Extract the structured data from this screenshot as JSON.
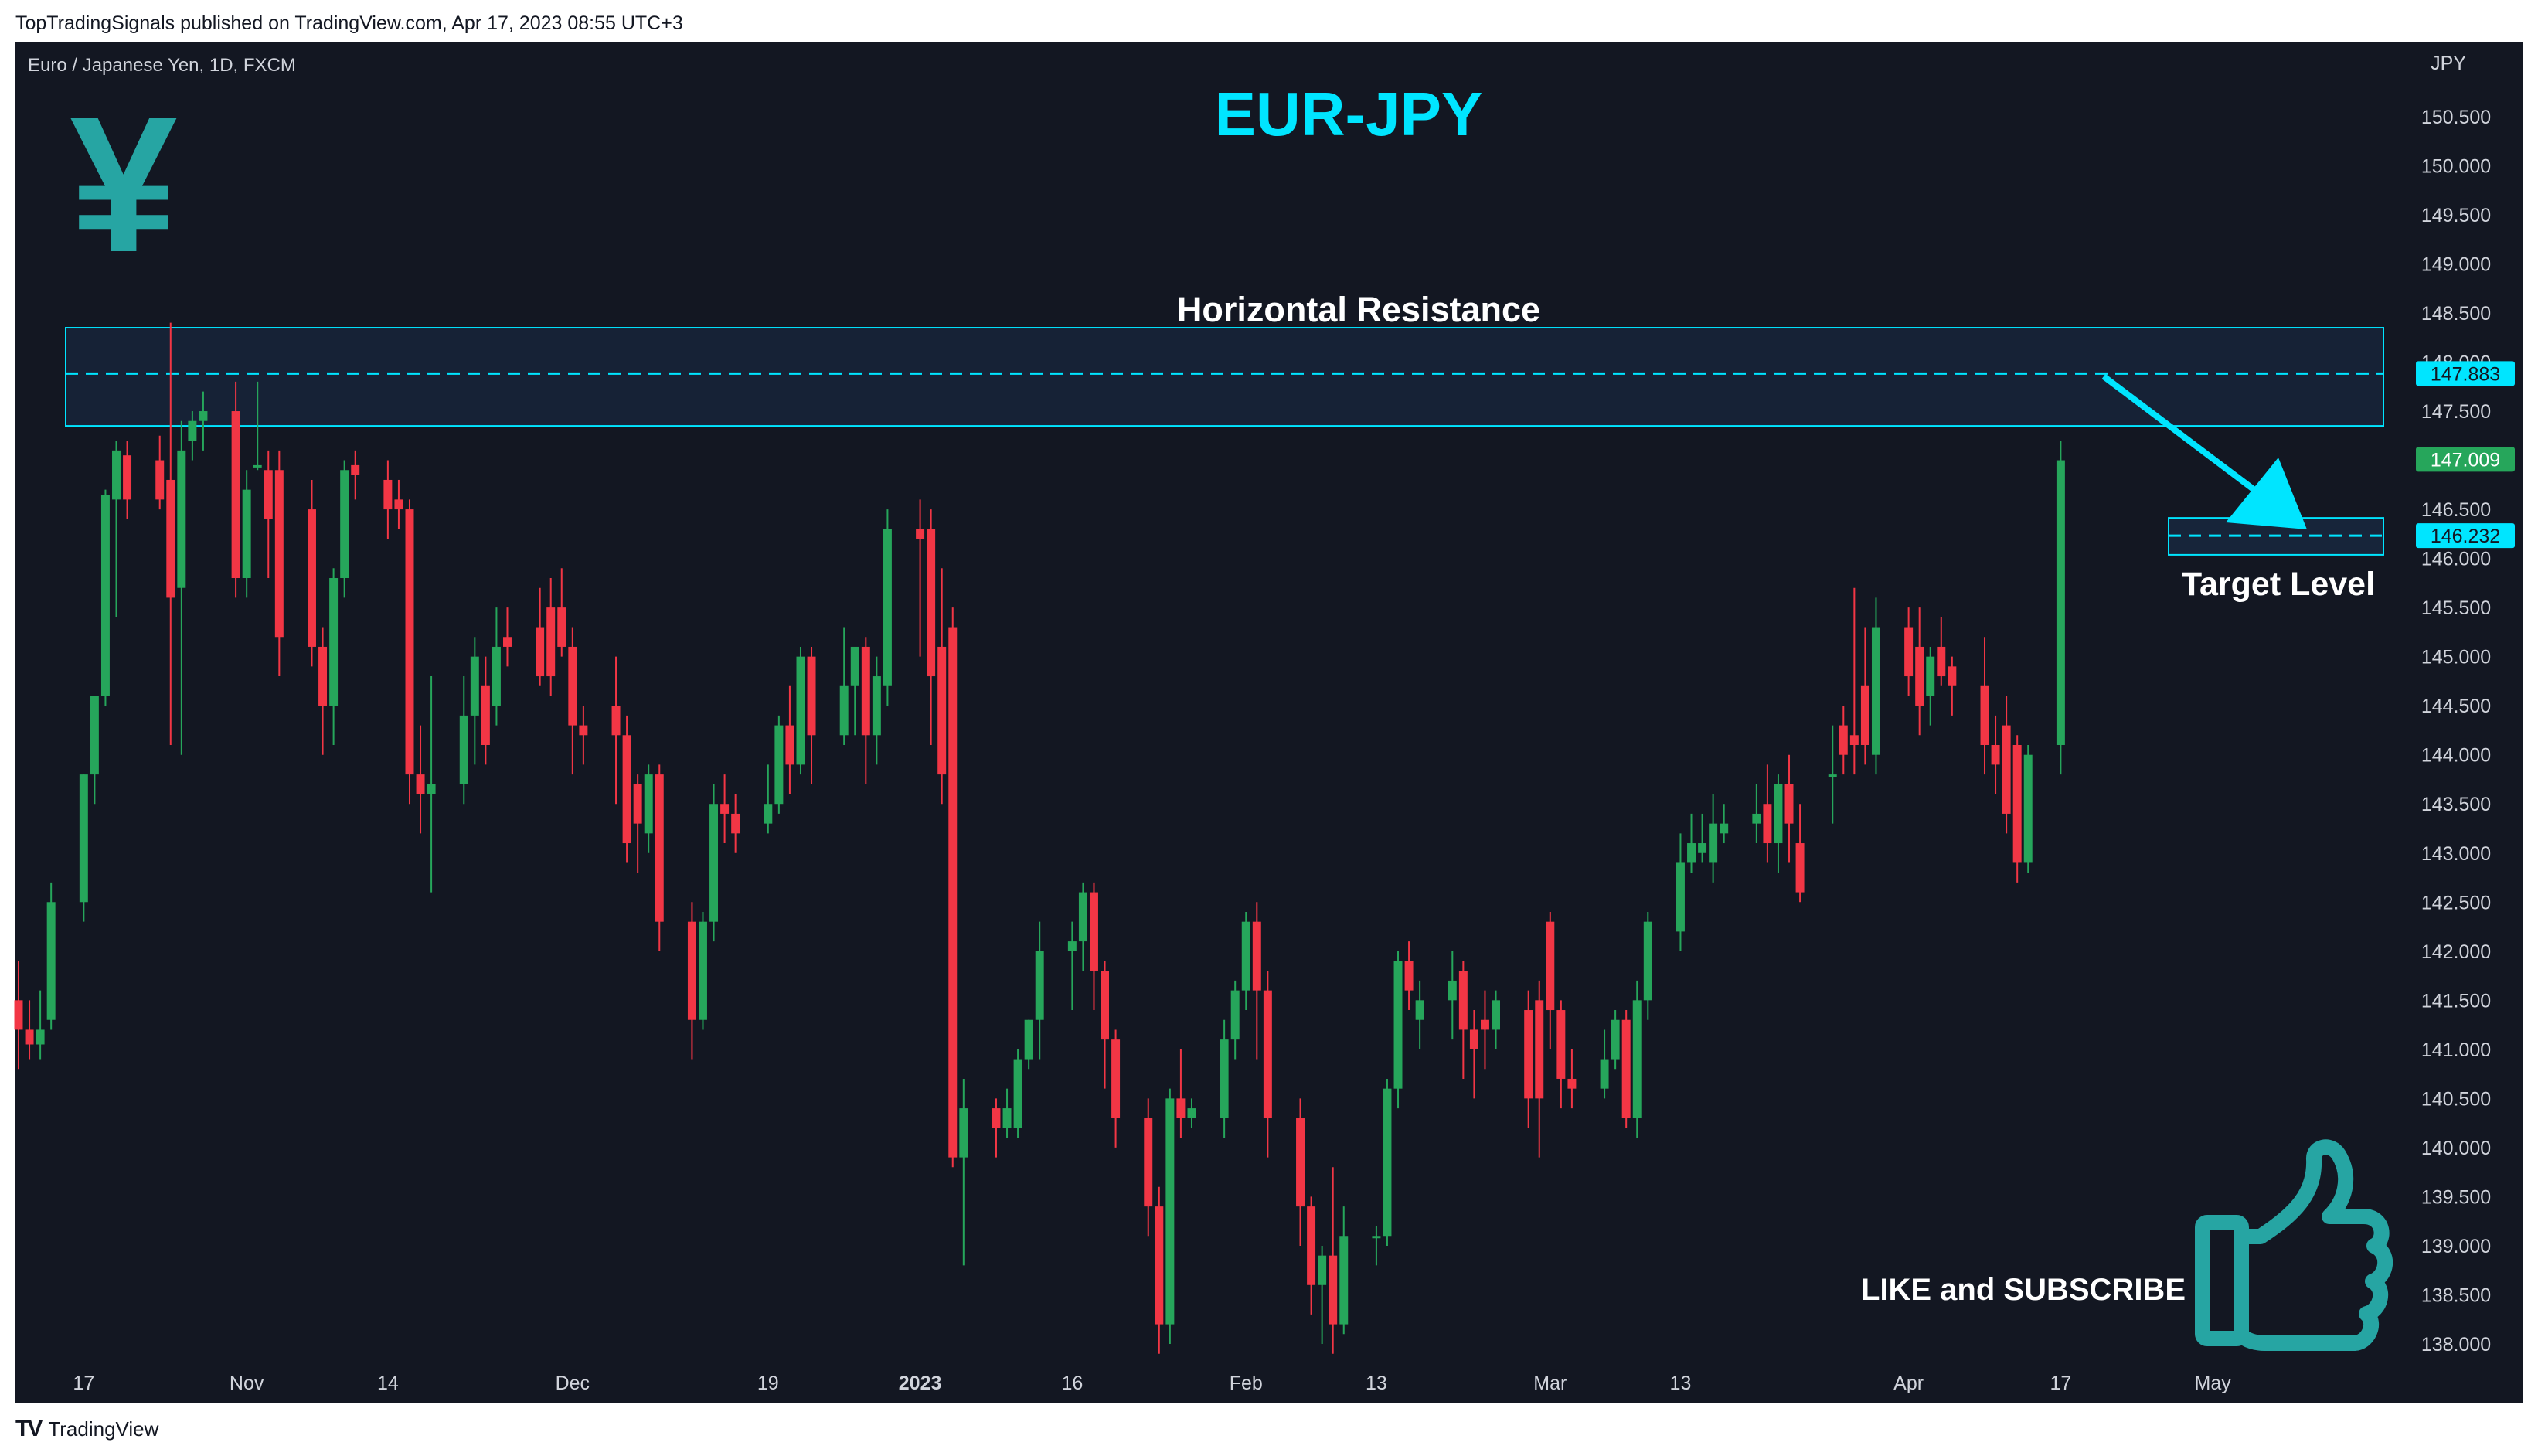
{
  "publish_info": "TopTradingSignals published on TradingView.com, Apr 17, 2023 08:55 UTC+3",
  "footer_brand": "TradingView",
  "footer_logo": "TV",
  "symbol_label": "Euro / Japanese Yen, 1D, FXCM",
  "currency": "JPY",
  "headline": "EUR-JPY",
  "logo_glyph": "¥",
  "icons": {
    "currency_logo": "yen-icon",
    "like": "thumbs-up-icon",
    "arrow": "arrow-icon"
  },
  "colors": {
    "background": "#131722",
    "up": "#26a65b",
    "down": "#f23645",
    "accent": "#00e5ff",
    "text": "#ffffff",
    "axis_text": "#d1d4dc"
  },
  "annotations": {
    "resistance_label": "Horizontal Resistance",
    "target_label": "Target Level",
    "subscribe_label": "LIKE and SUBSCRIBE"
  },
  "chart_data": {
    "type": "candlestick",
    "symbol": "EUR/JPY",
    "interval": "1D",
    "ylim": [
      137.9,
      150.85
    ],
    "y_ticks": [
      138.0,
      138.5,
      139.0,
      139.5,
      140.0,
      140.5,
      141.0,
      141.5,
      142.0,
      142.5,
      143.0,
      143.5,
      144.0,
      144.5,
      145.0,
      145.5,
      146.0,
      146.5,
      147.0,
      147.5,
      148.0,
      148.5,
      149.0,
      149.5,
      150.0,
      150.5
    ],
    "y_tick_labels": [
      "138.000",
      "138.500",
      "139.000",
      "139.500",
      "140.000",
      "140.500",
      "141.000",
      "141.500",
      "142.000",
      "142.500",
      "143.000",
      "143.500",
      "144.000",
      "144.500",
      "145.000",
      "145.500",
      "146.000",
      "146.500",
      "147.000",
      "147.500",
      "148.000",
      "148.500",
      "149.000",
      "149.500",
      "150.000",
      "150.500"
    ],
    "x_range": [
      "2022-10-11",
      "2023-05-16"
    ],
    "x_ticks": [
      {
        "date": "2022-10-17",
        "label": "17"
      },
      {
        "date": "2022-11-01",
        "label": "Nov"
      },
      {
        "date": "2022-11-14",
        "label": "14"
      },
      {
        "date": "2022-12-01",
        "label": "Dec"
      },
      {
        "date": "2022-12-19",
        "label": "19"
      },
      {
        "date": "2023-01-02",
        "label": "2023"
      },
      {
        "date": "2023-01-16",
        "label": "16"
      },
      {
        "date": "2023-02-01",
        "label": "Feb"
      },
      {
        "date": "2023-02-13",
        "label": "13"
      },
      {
        "date": "2023-03-01",
        "label": "Mar"
      },
      {
        "date": "2023-03-13",
        "label": "13"
      },
      {
        "date": "2023-04-03",
        "label": "Apr"
      },
      {
        "date": "2023-04-17",
        "label": "17"
      },
      {
        "date": "2023-05-01",
        "label": "May"
      }
    ],
    "candles": [
      {
        "d": "2022-10-11",
        "o": 141.5,
        "h": 141.9,
        "c": 141.2,
        "l": 140.8
      },
      {
        "d": "2022-10-12",
        "o": 141.2,
        "h": 141.5,
        "c": 141.05,
        "l": 140.9
      },
      {
        "d": "2022-10-13",
        "o": 141.05,
        "h": 141.6,
        "c": 141.2,
        "l": 140.9
      },
      {
        "d": "2022-10-14",
        "o": 141.3,
        "h": 142.7,
        "c": 142.5,
        "l": 141.2
      },
      {
        "d": "2022-10-17",
        "o": 142.5,
        "h": 143.8,
        "c": 143.8,
        "l": 142.3
      },
      {
        "d": "2022-10-18",
        "o": 143.8,
        "h": 144.6,
        "c": 144.6,
        "l": 143.5
      },
      {
        "d": "2022-10-19",
        "o": 144.6,
        "h": 146.7,
        "c": 146.65,
        "l": 144.5
      },
      {
        "d": "2022-10-20",
        "o": 146.6,
        "h": 147.2,
        "c": 147.1,
        "l": 145.4
      },
      {
        "d": "2022-10-21",
        "o": 147.05,
        "h": 147.2,
        "c": 146.6,
        "l": 146.4
      },
      {
        "d": "2022-10-24",
        "o": 147.0,
        "h": 147.25,
        "c": 146.6,
        "l": 146.5
      },
      {
        "d": "2022-10-25",
        "o": 146.8,
        "h": 148.4,
        "c": 145.6,
        "l": 144.1
      },
      {
        "d": "2022-10-26",
        "o": 145.7,
        "h": 147.4,
        "c": 147.1,
        "l": 144.0
      },
      {
        "d": "2022-10-27",
        "o": 147.2,
        "h": 147.5,
        "c": 147.4,
        "l": 147.0
      },
      {
        "d": "2022-10-28",
        "o": 147.4,
        "h": 147.7,
        "c": 147.5,
        "l": 147.1
      },
      {
        "d": "2022-10-31",
        "o": 147.5,
        "h": 147.8,
        "c": 145.8,
        "l": 145.6
      },
      {
        "d": "2022-11-01",
        "o": 145.8,
        "h": 146.9,
        "c": 146.7,
        "l": 145.6
      },
      {
        "d": "2022-11-02",
        "o": 146.95,
        "h": 147.8,
        "c": 146.95,
        "l": 146.9
      },
      {
        "d": "2022-11-03",
        "o": 146.9,
        "h": 147.1,
        "c": 146.4,
        "l": 145.8
      },
      {
        "d": "2022-11-04",
        "o": 146.9,
        "h": 147.1,
        "c": 145.2,
        "l": 144.8
      },
      {
        "d": "2022-11-07",
        "o": 146.5,
        "h": 146.8,
        "c": 145.1,
        "l": 144.9
      },
      {
        "d": "2022-11-08",
        "o": 145.1,
        "h": 145.3,
        "c": 144.5,
        "l": 144.0
      },
      {
        "d": "2022-11-09",
        "o": 144.5,
        "h": 145.9,
        "c": 145.8,
        "l": 144.1
      },
      {
        "d": "2022-11-10",
        "o": 145.8,
        "h": 147.0,
        "c": 146.9,
        "l": 145.6
      },
      {
        "d": "2022-11-11",
        "o": 146.95,
        "h": 147.1,
        "c": 146.85,
        "l": 146.6
      },
      {
        "d": "2022-11-14",
        "o": 146.8,
        "h": 147.0,
        "c": 146.5,
        "l": 146.2
      },
      {
        "d": "2022-11-15",
        "o": 146.6,
        "h": 146.8,
        "c": 146.5,
        "l": 146.3
      },
      {
        "d": "2022-11-16",
        "o": 146.5,
        "h": 146.6,
        "c": 143.8,
        "l": 143.5
      },
      {
        "d": "2022-11-17",
        "o": 143.8,
        "h": 144.3,
        "c": 143.6,
        "l": 143.2
      },
      {
        "d": "2022-11-18",
        "o": 143.6,
        "h": 144.8,
        "c": 143.7,
        "l": 142.6
      },
      {
        "d": "2022-11-21",
        "o": 143.7,
        "h": 144.8,
        "c": 144.4,
        "l": 143.5
      },
      {
        "d": "2022-11-22",
        "o": 144.4,
        "h": 145.2,
        "c": 145.0,
        "l": 143.9
      },
      {
        "d": "2022-11-23",
        "o": 144.7,
        "h": 145.0,
        "c": 144.1,
        "l": 143.9
      },
      {
        "d": "2022-11-24",
        "o": 144.5,
        "h": 145.5,
        "c": 145.1,
        "l": 144.3
      },
      {
        "d": "2022-11-25",
        "o": 145.2,
        "h": 145.5,
        "c": 145.1,
        "l": 144.9
      },
      {
        "d": "2022-11-28",
        "o": 145.3,
        "h": 145.7,
        "c": 144.8,
        "l": 144.7
      },
      {
        "d": "2022-11-29",
        "o": 145.5,
        "h": 145.8,
        "c": 144.8,
        "l": 144.6
      },
      {
        "d": "2022-11-30",
        "o": 145.5,
        "h": 145.9,
        "c": 145.1,
        "l": 145.0
      },
      {
        "d": "2022-12-01",
        "o": 145.1,
        "h": 145.3,
        "c": 144.3,
        "l": 143.8
      },
      {
        "d": "2022-12-02",
        "o": 144.3,
        "h": 144.5,
        "c": 144.2,
        "l": 143.9
      },
      {
        "d": "2022-12-05",
        "o": 144.5,
        "h": 145.0,
        "c": 144.2,
        "l": 143.5
      },
      {
        "d": "2022-12-06",
        "o": 144.2,
        "h": 144.4,
        "c": 143.1,
        "l": 142.9
      },
      {
        "d": "2022-12-07",
        "o": 143.7,
        "h": 143.8,
        "c": 143.3,
        "l": 142.8
      },
      {
        "d": "2022-12-08",
        "o": 143.2,
        "h": 143.9,
        "c": 143.8,
        "l": 143.0
      },
      {
        "d": "2022-12-09",
        "o": 143.8,
        "h": 143.9,
        "c": 142.3,
        "l": 142.0
      },
      {
        "d": "2022-12-12",
        "o": 142.3,
        "h": 142.5,
        "c": 141.3,
        "l": 140.9
      },
      {
        "d": "2022-12-13",
        "o": 141.3,
        "h": 142.4,
        "c": 142.3,
        "l": 141.2
      },
      {
        "d": "2022-12-14",
        "o": 142.3,
        "h": 143.7,
        "c": 143.5,
        "l": 142.1
      },
      {
        "d": "2022-12-15",
        "o": 143.5,
        "h": 143.8,
        "c": 143.4,
        "l": 143.1
      },
      {
        "d": "2022-12-16",
        "o": 143.4,
        "h": 143.6,
        "c": 143.2,
        "l": 143.0
      },
      {
        "d": "2022-12-19",
        "o": 143.3,
        "h": 143.9,
        "c": 143.5,
        "l": 143.2
      },
      {
        "d": "2022-12-20",
        "o": 143.5,
        "h": 144.4,
        "c": 144.3,
        "l": 143.4
      },
      {
        "d": "2022-12-21",
        "o": 144.3,
        "h": 144.7,
        "c": 143.9,
        "l": 143.6
      },
      {
        "d": "2022-12-22",
        "o": 143.9,
        "h": 145.1,
        "c": 145.0,
        "l": 143.8
      },
      {
        "d": "2022-12-23",
        "o": 145.0,
        "h": 145.1,
        "c": 144.2,
        "l": 143.7
      },
      {
        "d": "2022-12-26",
        "o": 144.2,
        "h": 145.3,
        "c": 144.7,
        "l": 144.1
      },
      {
        "d": "2022-12-27",
        "o": 144.7,
        "h": 145.1,
        "c": 145.1,
        "l": 144.2
      },
      {
        "d": "2022-12-28",
        "o": 145.1,
        "h": 145.2,
        "c": 144.2,
        "l": 143.7
      },
      {
        "d": "2022-12-29",
        "o": 144.2,
        "h": 145.0,
        "c": 144.8,
        "l": 143.9
      },
      {
        "d": "2022-12-30",
        "o": 144.7,
        "h": 146.5,
        "c": 146.3,
        "l": 144.5
      },
      {
        "d": "2023-01-02",
        "o": 146.3,
        "h": 146.6,
        "c": 146.2,
        "l": 145.0
      },
      {
        "d": "2023-01-03",
        "o": 146.3,
        "h": 146.5,
        "c": 144.8,
        "l": 144.1
      },
      {
        "d": "2023-01-04",
        "o": 145.1,
        "h": 145.9,
        "c": 143.8,
        "l": 143.5
      },
      {
        "d": "2023-01-05",
        "o": 145.3,
        "h": 145.5,
        "c": 139.9,
        "l": 139.8
      },
      {
        "d": "2023-01-06",
        "o": 139.9,
        "h": 140.7,
        "c": 140.4,
        "l": 138.8
      },
      {
        "d": "2023-01-09",
        "o": 140.4,
        "h": 140.5,
        "c": 140.2,
        "l": 139.9
      },
      {
        "d": "2023-01-10",
        "o": 140.2,
        "h": 140.6,
        "c": 140.4,
        "l": 140.1
      },
      {
        "d": "2023-01-11",
        "o": 140.2,
        "h": 141.0,
        "c": 140.9,
        "l": 140.1
      },
      {
        "d": "2023-01-12",
        "o": 140.9,
        "h": 141.3,
        "c": 141.3,
        "l": 140.8
      },
      {
        "d": "2023-01-13",
        "o": 141.3,
        "h": 142.3,
        "c": 142.0,
        "l": 140.9
      },
      {
        "d": "2023-01-16",
        "o": 142.0,
        "h": 142.3,
        "c": 142.1,
        "l": 141.4
      },
      {
        "d": "2023-01-17",
        "o": 142.1,
        "h": 142.7,
        "c": 142.6,
        "l": 141.8
      },
      {
        "d": "2023-01-18",
        "o": 142.6,
        "h": 142.7,
        "c": 141.8,
        "l": 141.4
      },
      {
        "d": "2023-01-19",
        "o": 141.8,
        "h": 141.9,
        "c": 141.1,
        "l": 140.6
      },
      {
        "d": "2023-01-20",
        "o": 141.1,
        "h": 141.2,
        "c": 140.3,
        "l": 140.0
      },
      {
        "d": "2023-01-23",
        "o": 140.3,
        "h": 140.5,
        "c": 139.4,
        "l": 139.1
      },
      {
        "d": "2023-01-24",
        "o": 139.4,
        "h": 139.6,
        "c": 138.2,
        "l": 137.9
      },
      {
        "d": "2023-01-25",
        "o": 138.2,
        "h": 140.6,
        "c": 140.5,
        "l": 138.0
      },
      {
        "d": "2023-01-26",
        "o": 140.5,
        "h": 141.0,
        "c": 140.3,
        "l": 140.1
      },
      {
        "d": "2023-01-27",
        "o": 140.3,
        "h": 140.5,
        "c": 140.4,
        "l": 140.2
      },
      {
        "d": "2023-01-30",
        "o": 140.3,
        "h": 141.3,
        "c": 141.1,
        "l": 140.1
      },
      {
        "d": "2023-01-31",
        "o": 141.1,
        "h": 141.7,
        "c": 141.6,
        "l": 140.9
      },
      {
        "d": "2023-02-01",
        "o": 141.6,
        "h": 142.4,
        "c": 142.3,
        "l": 141.4
      },
      {
        "d": "2023-02-02",
        "o": 142.3,
        "h": 142.5,
        "c": 141.6,
        "l": 140.9
      },
      {
        "d": "2023-02-03",
        "o": 141.6,
        "h": 141.8,
        "c": 140.3,
        "l": 139.9
      },
      {
        "d": "2023-02-06",
        "o": 140.3,
        "h": 140.5,
        "c": 139.4,
        "l": 139.0
      },
      {
        "d": "2023-02-07",
        "o": 139.4,
        "h": 139.5,
        "c": 138.6,
        "l": 138.3
      },
      {
        "d": "2023-02-08",
        "o": 138.6,
        "h": 139.0,
        "c": 138.9,
        "l": 138.0
      },
      {
        "d": "2023-02-09",
        "o": 138.9,
        "h": 139.8,
        "c": 138.2,
        "l": 137.9
      },
      {
        "d": "2023-02-10",
        "o": 138.2,
        "h": 139.4,
        "c": 139.1,
        "l": 138.1
      },
      {
        "d": "2023-02-13",
        "o": 139.1,
        "h": 139.2,
        "c": 139.1,
        "l": 138.8
      },
      {
        "d": "2023-02-14",
        "o": 139.1,
        "h": 140.7,
        "c": 140.6,
        "l": 139.0
      },
      {
        "d": "2023-02-15",
        "o": 140.6,
        "h": 142.0,
        "c": 141.9,
        "l": 140.4
      },
      {
        "d": "2023-02-16",
        "o": 141.9,
        "h": 142.1,
        "c": 141.6,
        "l": 141.4
      },
      {
        "d": "2023-02-17",
        "o": 141.3,
        "h": 141.7,
        "c": 141.5,
        "l": 141.0
      },
      {
        "d": "2023-02-20",
        "o": 141.5,
        "h": 142.0,
        "c": 141.7,
        "l": 141.1
      },
      {
        "d": "2023-02-21",
        "o": 141.8,
        "h": 141.9,
        "c": 141.2,
        "l": 140.7
      },
      {
        "d": "2023-02-22",
        "o": 141.2,
        "h": 141.4,
        "c": 141.0,
        "l": 140.5
      },
      {
        "d": "2023-02-23",
        "o": 141.3,
        "h": 141.6,
        "c": 141.2,
        "l": 140.8
      },
      {
        "d": "2023-02-24",
        "o": 141.2,
        "h": 141.6,
        "c": 141.5,
        "l": 141.0
      },
      {
        "d": "2023-02-27",
        "o": 141.4,
        "h": 141.6,
        "c": 140.5,
        "l": 140.2
      },
      {
        "d": "2023-02-28",
        "o": 141.5,
        "h": 141.7,
        "c": 140.5,
        "l": 139.9
      },
      {
        "d": "2023-03-01",
        "o": 142.3,
        "h": 142.4,
        "c": 141.4,
        "l": 141.0
      },
      {
        "d": "2023-03-02",
        "o": 141.4,
        "h": 141.5,
        "c": 140.7,
        "l": 140.4
      },
      {
        "d": "2023-03-03",
        "o": 140.7,
        "h": 141.0,
        "c": 140.6,
        "l": 140.4
      },
      {
        "d": "2023-03-06",
        "o": 140.6,
        "h": 141.2,
        "c": 140.9,
        "l": 140.5
      },
      {
        "d": "2023-03-07",
        "o": 140.9,
        "h": 141.4,
        "c": 141.3,
        "l": 140.8
      },
      {
        "d": "2023-03-08",
        "o": 141.3,
        "h": 141.4,
        "c": 140.3,
        "l": 140.2
      },
      {
        "d": "2023-03-09",
        "o": 140.3,
        "h": 141.7,
        "c": 141.5,
        "l": 140.1
      },
      {
        "d": "2023-03-10",
        "o": 141.5,
        "h": 142.4,
        "c": 142.3,
        "l": 141.3
      },
      {
        "d": "2023-03-13",
        "o": 142.2,
        "h": 143.2,
        "c": 142.9,
        "l": 142.0
      },
      {
        "d": "2023-03-14",
        "o": 142.9,
        "h": 143.4,
        "c": 143.1,
        "l": 142.8
      },
      {
        "d": "2023-03-15",
        "o": 143.0,
        "h": 143.4,
        "c": 143.1,
        "l": 142.9
      },
      {
        "d": "2023-03-16",
        "o": 142.9,
        "h": 143.6,
        "c": 143.3,
        "l": 142.7
      },
      {
        "d": "2023-03-17",
        "o": 143.2,
        "h": 143.5,
        "c": 143.3,
        "l": 143.1
      },
      {
        "d": "2023-03-20",
        "o": 143.3,
        "h": 143.7,
        "c": 143.4,
        "l": 143.1
      },
      {
        "d": "2023-03-21",
        "o": 143.5,
        "h": 143.9,
        "c": 143.1,
        "l": 142.9
      },
      {
        "d": "2023-03-22",
        "o": 143.1,
        "h": 143.8,
        "c": 143.7,
        "l": 142.8
      },
      {
        "d": "2023-03-23",
        "o": 143.7,
        "h": 144.0,
        "c": 143.3,
        "l": 142.9
      },
      {
        "d": "2023-03-24",
        "o": 143.1,
        "h": 143.5,
        "c": 142.6,
        "l": 142.5
      },
      {
        "d": "2023-03-27",
        "o": 143.8,
        "h": 144.3,
        "c": 143.8,
        "l": 143.3
      },
      {
        "d": "2023-03-28",
        "o": 144.3,
        "h": 144.5,
        "c": 144.0,
        "l": 143.8
      },
      {
        "d": "2023-03-29",
        "o": 144.2,
        "h": 145.7,
        "c": 144.1,
        "l": 143.8
      },
      {
        "d": "2023-03-30",
        "o": 144.7,
        "h": 145.3,
        "c": 144.1,
        "l": 143.9
      },
      {
        "d": "2023-03-31",
        "o": 144.0,
        "h": 145.6,
        "c": 145.3,
        "l": 143.8
      },
      {
        "d": "2023-04-03",
        "o": 145.3,
        "h": 145.5,
        "c": 144.8,
        "l": 144.6
      },
      {
        "d": "2023-04-04",
        "o": 145.1,
        "h": 145.5,
        "c": 144.5,
        "l": 144.2
      },
      {
        "d": "2023-04-05",
        "o": 144.6,
        "h": 145.1,
        "c": 145.0,
        "l": 144.3
      },
      {
        "d": "2023-04-06",
        "o": 145.1,
        "h": 145.4,
        "c": 144.8,
        "l": 144.7
      },
      {
        "d": "2023-04-07",
        "o": 144.9,
        "h": 145.0,
        "c": 144.7,
        "l": 144.4
      },
      {
        "d": "2023-04-10",
        "o": 144.7,
        "h": 145.2,
        "c": 144.1,
        "l": 143.8
      },
      {
        "d": "2023-04-11",
        "o": 144.1,
        "h": 144.4,
        "c": 143.9,
        "l": 143.6
      },
      {
        "d": "2023-04-12",
        "o": 144.3,
        "h": 144.6,
        "c": 143.4,
        "l": 143.2
      },
      {
        "d": "2023-04-13",
        "o": 144.1,
        "h": 144.2,
        "c": 142.9,
        "l": 142.7
      },
      {
        "d": "2023-04-14",
        "o": 142.9,
        "h": 144.1,
        "c": 144.0,
        "l": 142.8
      },
      {
        "d": "2023-04-17",
        "o": 144.1,
        "h": 147.2,
        "c": 147.0,
        "l": 143.8
      }
    ],
    "resistance_zone": {
      "low": 147.35,
      "high": 148.35,
      "level": 147.883,
      "label": "Horizontal Resistance"
    },
    "target_zone": {
      "low": 146.1,
      "high": 146.35,
      "level": 146.232,
      "label": "Target Level"
    },
    "price_labels": [
      {
        "value": 147.883,
        "text": "147.883"
      },
      {
        "value": 147.009,
        "text": "147.009"
      },
      {
        "value": 146.232,
        "text": "146.232"
      }
    ]
  }
}
